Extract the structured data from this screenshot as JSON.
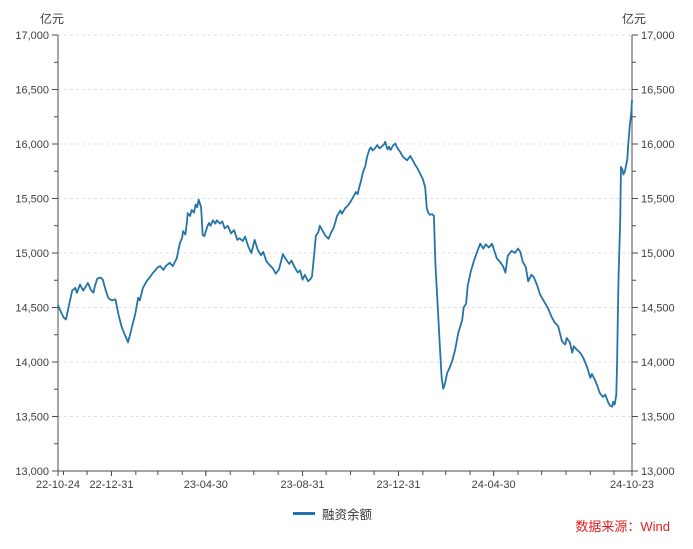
{
  "header": {
    "unit_left": "亿元",
    "unit_right": "亿元"
  },
  "legend": {
    "label": "融资余额"
  },
  "source": {
    "text": "数据来源：Wind"
  },
  "colors": {
    "line": "#2474A8",
    "grid": "#e2e2e2",
    "axis": "#4d4d4d",
    "text": "#404040",
    "source_text": "#E02020",
    "background": "#ffffff"
  },
  "chart_data": {
    "type": "line",
    "title": "",
    "xlabel": "",
    "ylabel": "亿元",
    "grid": "horizontal-dashed",
    "legend_position": "bottom-center",
    "x_axis": {
      "start_date": "22-10-24",
      "end_date": "24-10-23",
      "range_days": [
        0,
        730
      ],
      "labels": [
        {
          "day": 0,
          "label": "22-10-24"
        },
        {
          "day": 68,
          "label": "22-12-31"
        },
        {
          "day": 188,
          "label": "23-04-30"
        },
        {
          "day": 311,
          "label": "23-08-31"
        },
        {
          "day": 433,
          "label": "23-12-31"
        },
        {
          "day": 554,
          "label": "24-04-30"
        },
        {
          "day": 730,
          "label": "24-10-23"
        }
      ],
      "minor_tick_days": [
        0,
        7,
        37,
        68,
        99,
        127,
        158,
        188,
        219,
        249,
        280,
        311,
        341,
        372,
        402,
        433,
        464,
        493,
        524,
        554,
        585,
        615,
        646,
        677,
        707
      ]
    },
    "y_axis": {
      "range": [
        13000,
        17000
      ],
      "tick_step": 500,
      "minor_tick_step": 250,
      "ticks": [
        {
          "value": 13000,
          "label": "13,000"
        },
        {
          "value": 13500,
          "label": "13,500"
        },
        {
          "value": 14000,
          "label": "14,000"
        },
        {
          "value": 14500,
          "label": "14,500"
        },
        {
          "value": 15000,
          "label": "15,000"
        },
        {
          "value": 15500,
          "label": "15,500"
        },
        {
          "value": 16000,
          "label": "16,000"
        },
        {
          "value": 16500,
          "label": "16,500"
        },
        {
          "value": 17000,
          "label": "17,000"
        }
      ]
    },
    "series": [
      {
        "name": "融资余额",
        "color": "#2474A8",
        "points": [
          [
            0,
            14520
          ],
          [
            3,
            14470
          ],
          [
            7,
            14410
          ],
          [
            10,
            14390
          ],
          [
            14,
            14520
          ],
          [
            18,
            14655
          ],
          [
            22,
            14680
          ],
          [
            24,
            14635
          ],
          [
            28,
            14710
          ],
          [
            32,
            14655
          ],
          [
            36,
            14700
          ],
          [
            38,
            14725
          ],
          [
            42,
            14660
          ],
          [
            45,
            14635
          ],
          [
            47,
            14700
          ],
          [
            50,
            14765
          ],
          [
            54,
            14775
          ],
          [
            57,
            14755
          ],
          [
            61,
            14650
          ],
          [
            64,
            14590
          ],
          [
            66,
            14575
          ],
          [
            69,
            14565
          ],
          [
            73,
            14575
          ],
          [
            77,
            14435
          ],
          [
            81,
            14320
          ],
          [
            85,
            14250
          ],
          [
            88,
            14200
          ],
          [
            89,
            14180
          ],
          [
            92,
            14260
          ],
          [
            94,
            14320
          ],
          [
            98,
            14435
          ],
          [
            102,
            14590
          ],
          [
            104,
            14565
          ],
          [
            108,
            14680
          ],
          [
            113,
            14745
          ],
          [
            117,
            14780
          ],
          [
            121,
            14820
          ],
          [
            123,
            14835
          ],
          [
            127,
            14870
          ],
          [
            130,
            14880
          ],
          [
            134,
            14845
          ],
          [
            137,
            14880
          ],
          [
            142,
            14910
          ],
          [
            146,
            14880
          ],
          [
            151,
            14950
          ],
          [
            155,
            15090
          ],
          [
            158,
            15140
          ],
          [
            159,
            15200
          ],
          [
            162,
            15170
          ],
          [
            164,
            15290
          ],
          [
            165,
            15365
          ],
          [
            168,
            15340
          ],
          [
            170,
            15395
          ],
          [
            173,
            15370
          ],
          [
            175,
            15445
          ],
          [
            177,
            15420
          ],
          [
            179,
            15490
          ],
          [
            182,
            15420
          ],
          [
            184,
            15165
          ],
          [
            186,
            15155
          ],
          [
            190,
            15245
          ],
          [
            192,
            15275
          ],
          [
            194,
            15250
          ],
          [
            197,
            15300
          ],
          [
            200,
            15270
          ],
          [
            202,
            15300
          ],
          [
            206,
            15270
          ],
          [
            209,
            15290
          ],
          [
            212,
            15225
          ],
          [
            216,
            15250
          ],
          [
            220,
            15180
          ],
          [
            224,
            15210
          ],
          [
            228,
            15120
          ],
          [
            231,
            15135
          ],
          [
            235,
            15110
          ],
          [
            238,
            15150
          ],
          [
            242,
            15060
          ],
          [
            246,
            15000
          ],
          [
            250,
            15120
          ],
          [
            254,
            15030
          ],
          [
            258,
            14980
          ],
          [
            261,
            15010
          ],
          [
            265,
            14925
          ],
          [
            269,
            14890
          ],
          [
            273,
            14860
          ],
          [
            277,
            14810
          ],
          [
            281,
            14850
          ],
          [
            286,
            14990
          ],
          [
            290,
            14940
          ],
          [
            294,
            14900
          ],
          [
            297,
            14930
          ],
          [
            301,
            14870
          ],
          [
            305,
            14820
          ],
          [
            308,
            14840
          ],
          [
            311,
            14755
          ],
          [
            314,
            14800
          ],
          [
            318,
            14740
          ],
          [
            321,
            14760
          ],
          [
            323,
            14785
          ],
          [
            326,
            15000
          ],
          [
            328,
            15160
          ],
          [
            331,
            15190
          ],
          [
            333,
            15250
          ],
          [
            336,
            15210
          ],
          [
            340,
            15160
          ],
          [
            344,
            15130
          ],
          [
            347,
            15180
          ],
          [
            351,
            15240
          ],
          [
            355,
            15340
          ],
          [
            359,
            15390
          ],
          [
            361,
            15360
          ],
          [
            365,
            15410
          ],
          [
            368,
            15430
          ],
          [
            372,
            15470
          ],
          [
            375,
            15510
          ],
          [
            379,
            15560
          ],
          [
            381,
            15540
          ],
          [
            383,
            15600
          ],
          [
            386,
            15680
          ],
          [
            388,
            15745
          ],
          [
            391,
            15800
          ],
          [
            393,
            15880
          ],
          [
            396,
            15950
          ],
          [
            398,
            15970
          ],
          [
            400,
            15940
          ],
          [
            403,
            15960
          ],
          [
            406,
            15990
          ],
          [
            409,
            15960
          ],
          [
            412,
            15980
          ],
          [
            415,
            16000
          ],
          [
            416,
            16020
          ],
          [
            419,
            15950
          ],
          [
            421,
            15975
          ],
          [
            423,
            15945
          ],
          [
            426,
            15985
          ],
          [
            429,
            16005
          ],
          [
            431,
            15970
          ],
          [
            435,
            15930
          ],
          [
            439,
            15880
          ],
          [
            444,
            15850
          ],
          [
            448,
            15890
          ],
          [
            452,
            15840
          ],
          [
            454,
            15810
          ],
          [
            457,
            15780
          ],
          [
            461,
            15720
          ],
          [
            464,
            15680
          ],
          [
            467,
            15600
          ],
          [
            469,
            15410
          ],
          [
            471,
            15370
          ],
          [
            473,
            15350
          ],
          [
            476,
            15355
          ],
          [
            478,
            15340
          ],
          [
            480,
            14900
          ],
          [
            483,
            14500
          ],
          [
            486,
            14100
          ],
          [
            488,
            13850
          ],
          [
            490,
            13755
          ],
          [
            492,
            13800
          ],
          [
            495,
            13900
          ],
          [
            497,
            13930
          ],
          [
            501,
            14000
          ],
          [
            505,
            14110
          ],
          [
            509,
            14265
          ],
          [
            514,
            14385
          ],
          [
            516,
            14500
          ],
          [
            519,
            14535
          ],
          [
            521,
            14700
          ],
          [
            525,
            14830
          ],
          [
            529,
            14930
          ],
          [
            533,
            15010
          ],
          [
            537,
            15085
          ],
          [
            541,
            15040
          ],
          [
            544,
            15080
          ],
          [
            548,
            15050
          ],
          [
            552,
            15085
          ],
          [
            558,
            14950
          ],
          [
            562,
            14920
          ],
          [
            566,
            14880
          ],
          [
            569,
            14820
          ],
          [
            572,
            14975
          ],
          [
            577,
            15020
          ],
          [
            581,
            15000
          ],
          [
            585,
            15040
          ],
          [
            588,
            15010
          ],
          [
            591,
            14920
          ],
          [
            595,
            14870
          ],
          [
            598,
            14740
          ],
          [
            602,
            14800
          ],
          [
            605,
            14780
          ],
          [
            609,
            14710
          ],
          [
            613,
            14620
          ],
          [
            619,
            14545
          ],
          [
            623,
            14495
          ],
          [
            628,
            14410
          ],
          [
            632,
            14360
          ],
          [
            636,
            14330
          ],
          [
            641,
            14190
          ],
          [
            645,
            14160
          ],
          [
            647,
            14220
          ],
          [
            651,
            14180
          ],
          [
            654,
            14085
          ],
          [
            656,
            14145
          ],
          [
            660,
            14110
          ],
          [
            664,
            14085
          ],
          [
            668,
            14040
          ],
          [
            673,
            13950
          ],
          [
            677,
            13855
          ],
          [
            679,
            13890
          ],
          [
            683,
            13835
          ],
          [
            686,
            13780
          ],
          [
            689,
            13715
          ],
          [
            693,
            13680
          ],
          [
            696,
            13700
          ],
          [
            700,
            13625
          ],
          [
            702,
            13600
          ],
          [
            705,
            13590
          ],
          [
            706,
            13635
          ],
          [
            708,
            13610
          ],
          [
            710,
            13700
          ],
          [
            711,
            14000
          ],
          [
            712,
            14400
          ],
          [
            713,
            14800
          ],
          [
            715,
            15300
          ],
          [
            716,
            15790
          ],
          [
            718,
            15760
          ],
          [
            719,
            15720
          ],
          [
            721,
            15750
          ],
          [
            724,
            15860
          ],
          [
            725,
            15980
          ],
          [
            727,
            16150
          ],
          [
            729,
            16280
          ],
          [
            730,
            16400
          ]
        ]
      }
    ]
  }
}
